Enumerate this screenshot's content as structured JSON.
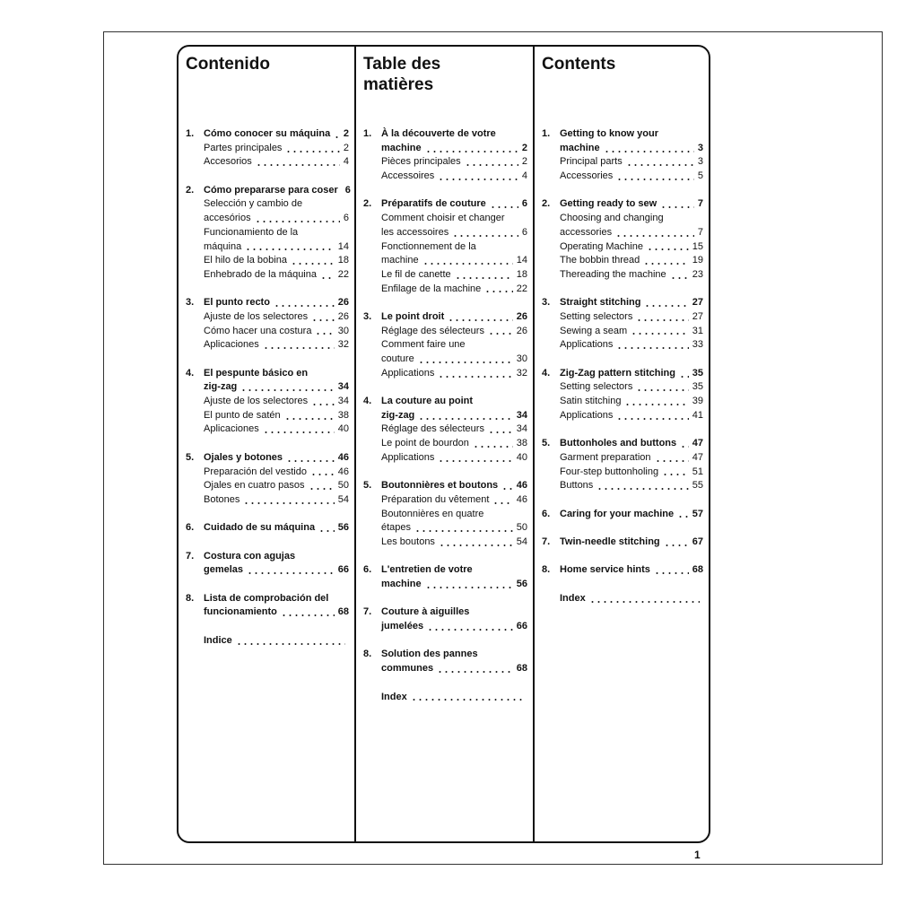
{
  "columns": [
    {
      "title": "Contenido",
      "sections": [
        {
          "number": "1.",
          "heading": [
            {
              "text": "Cómo conocer su máquina",
              "page": 2
            }
          ],
          "items": [
            {
              "text": "Partes principales",
              "page": 2
            },
            {
              "text": "Accesorios",
              "page": 4
            }
          ]
        },
        {
          "number": "2.",
          "heading": [
            {
              "text": "Cómo prepararse para coser",
              "page": 6
            }
          ],
          "items": [
            {
              "text": "Selección y cambio de"
            },
            {
              "text": "accesórios",
              "page": 6
            },
            {
              "text": "Funcionamiento de la"
            },
            {
              "text": "máquina",
              "page": 14
            },
            {
              "text": "El hilo de la bobina",
              "page": 18
            },
            {
              "text": "Enhebrado de la máquina",
              "page": 22
            }
          ]
        },
        {
          "number": "3.",
          "heading": [
            {
              "text": "El punto recto",
              "page": 26
            }
          ],
          "items": [
            {
              "text": "Ajuste de los selectores",
              "page": 26
            },
            {
              "text": "Cómo hacer una costura",
              "page": 30
            },
            {
              "text": "Aplicaciones",
              "page": 32
            }
          ]
        },
        {
          "number": "4.",
          "heading": [
            {
              "text": "El pespunte básico en"
            },
            {
              "text": "zig-zag",
              "page": 34
            }
          ],
          "items": [
            {
              "text": "Ajuste de los selectores",
              "page": 34
            },
            {
              "text": "El punto de satén",
              "page": 38
            },
            {
              "text": "Aplicaciones",
              "page": 40
            }
          ]
        },
        {
          "number": "5.",
          "heading": [
            {
              "text": "Ojales y botones",
              "page": 46
            }
          ],
          "items": [
            {
              "text": "Preparación del vestido",
              "page": 46
            },
            {
              "text": "Ojales en cuatro pasos",
              "page": 50
            },
            {
              "text": "Botones",
              "page": 54
            }
          ]
        },
        {
          "number": "6.",
          "heading": [
            {
              "text": "Cuidado de su máquina",
              "page": 56
            }
          ]
        },
        {
          "number": "7.",
          "heading": [
            {
              "text": "Costura con agujas"
            },
            {
              "text": "gemelas",
              "page": 66
            }
          ]
        },
        {
          "number": "8.",
          "heading": [
            {
              "text": "Lista de comprobación del"
            },
            {
              "text": "funcionamiento",
              "page": 68
            }
          ]
        },
        {
          "heading": [
            {
              "text": "Indice"
            }
          ]
        }
      ]
    },
    {
      "title": "Table des matières",
      "sections": [
        {
          "number": "1.",
          "heading": [
            {
              "text": "À la découverte de votre"
            },
            {
              "text": "machine",
              "page": 2
            }
          ],
          "items": [
            {
              "text": "Pièces principales",
              "page": 2
            },
            {
              "text": "Accessoires",
              "page": 4
            }
          ]
        },
        {
          "number": "2.",
          "heading": [
            {
              "text": "Préparatifs de couture",
              "page": 6
            }
          ],
          "items": [
            {
              "text": "Comment choisir et changer"
            },
            {
              "text": "les accessoires",
              "page": 6
            },
            {
              "text": "Fonctionnement de la"
            },
            {
              "text": "machine",
              "page": 14
            },
            {
              "text": "Le fil de canette",
              "page": 18
            },
            {
              "text": "Enfilage de la machine",
              "page": 22
            }
          ]
        },
        {
          "number": "3.",
          "heading": [
            {
              "text": "Le point droit",
              "page": 26
            }
          ],
          "items": [
            {
              "text": "Réglage des sélecteurs",
              "page": 26
            },
            {
              "text": "Comment faire une"
            },
            {
              "text": "couture",
              "page": 30
            },
            {
              "text": "Applications",
              "page": 32
            }
          ]
        },
        {
          "number": "4.",
          "heading": [
            {
              "text": "La couture au point"
            },
            {
              "text": "zig-zag",
              "page": 34
            }
          ],
          "items": [
            {
              "text": "Réglage des sélecteurs",
              "page": 34
            },
            {
              "text": "Le point de bourdon",
              "page": 38
            },
            {
              "text": "Applications",
              "page": 40
            }
          ]
        },
        {
          "number": "5.",
          "heading": [
            {
              "text": "Boutonnières et boutons",
              "page": 46
            }
          ],
          "items": [
            {
              "text": "Préparation du vêtement",
              "page": 46
            },
            {
              "text": "Boutonnières en quatre"
            },
            {
              "text": "étapes",
              "page": 50
            },
            {
              "text": "Les boutons",
              "page": 54
            }
          ]
        },
        {
          "number": "6.",
          "heading": [
            {
              "text": "L'entretien de votre"
            },
            {
              "text": "machine",
              "page": 56
            }
          ]
        },
        {
          "number": "7.",
          "heading": [
            {
              "text": "Couture à aiguilles"
            },
            {
              "text": "jumelées",
              "page": 66
            }
          ]
        },
        {
          "number": "8.",
          "heading": [
            {
              "text": "Solution des pannes"
            },
            {
              "text": "communes",
              "page": 68
            }
          ]
        },
        {
          "heading": [
            {
              "text": "Index"
            }
          ]
        }
      ]
    },
    {
      "title": "Contents",
      "sections": [
        {
          "number": "1.",
          "heading": [
            {
              "text": "Getting to know your"
            },
            {
              "text": "machine",
              "page": 3
            }
          ],
          "items": [
            {
              "text": "Principal parts",
              "page": 3
            },
            {
              "text": "Accessories",
              "page": 5
            }
          ]
        },
        {
          "number": "2.",
          "heading": [
            {
              "text": "Getting ready to sew",
              "page": 7
            }
          ],
          "items": [
            {
              "text": "Choosing and changing"
            },
            {
              "text": "accessories",
              "page": 7
            },
            {
              "text": "Operating Machine",
              "page": 15
            },
            {
              "text": "The bobbin thread",
              "page": 19
            },
            {
              "text": "Thereading the machine",
              "page": 23
            }
          ]
        },
        {
          "number": "3.",
          "heading": [
            {
              "text": "Straight stitching",
              "page": 27
            }
          ],
          "items": [
            {
              "text": "Setting selectors",
              "page": 27
            },
            {
              "text": "Sewing a seam",
              "page": 31
            },
            {
              "text": "Applications",
              "page": 33
            }
          ]
        },
        {
          "number": "4.",
          "heading": [
            {
              "text": "Zig-Zag pattern stitching",
              "page": 35
            }
          ],
          "items": [
            {
              "text": "Setting selectors",
              "page": 35
            },
            {
              "text": "Satin stitching",
              "page": 39
            },
            {
              "text": "Applications",
              "page": 41
            }
          ]
        },
        {
          "number": "5.",
          "heading": [
            {
              "text": "Buttonholes and buttons",
              "page": 47
            }
          ],
          "items": [
            {
              "text": "Garment preparation",
              "page": 47
            },
            {
              "text": "Four-step buttonholing",
              "page": 51
            },
            {
              "text": "Buttons",
              "page": 55
            }
          ]
        },
        {
          "number": "6.",
          "heading": [
            {
              "text": "Caring for your machine",
              "page": 57
            }
          ]
        },
        {
          "number": "7.",
          "heading": [
            {
              "text": "Twin-needle stitching",
              "page": 67
            }
          ]
        },
        {
          "number": "8.",
          "heading": [
            {
              "text": "Home service hints",
              "page": 68
            }
          ]
        },
        {
          "heading": [
            {
              "text": "Index"
            }
          ]
        }
      ]
    }
  ],
  "page_number": "1"
}
